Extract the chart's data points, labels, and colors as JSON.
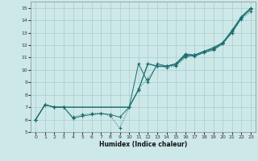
{
  "title": "",
  "xlabel": "Humidex (Indice chaleur)",
  "xlim": [
    -0.5,
    23.5
  ],
  "ylim": [
    5,
    15.5
  ],
  "xticks": [
    0,
    1,
    2,
    3,
    4,
    5,
    6,
    7,
    8,
    9,
    10,
    11,
    12,
    13,
    14,
    15,
    16,
    17,
    18,
    19,
    20,
    21,
    22,
    23
  ],
  "yticks": [
    5,
    6,
    7,
    8,
    9,
    10,
    11,
    12,
    13,
    14,
    15
  ],
  "background_color": "#cce8e8",
  "grid_color": "#aacccc",
  "line_color": "#1a6b6b",
  "series1_x": [
    0,
    1,
    2,
    3,
    10,
    11,
    12,
    13,
    14,
    15,
    16,
    17,
    18,
    19,
    20,
    21,
    22,
    23
  ],
  "series1_y": [
    6.0,
    7.2,
    7.0,
    7.0,
    7.0,
    8.4,
    10.5,
    10.3,
    10.3,
    10.5,
    11.2,
    11.1,
    11.4,
    11.6,
    12.1,
    13.1,
    14.2,
    14.9
  ],
  "series2_x": [
    0,
    1,
    2,
    3,
    4,
    5,
    6,
    7,
    8,
    9,
    10,
    11,
    12,
    13,
    14,
    15,
    16,
    17,
    18,
    19,
    20,
    21,
    22,
    23
  ],
  "series2_y": [
    6.0,
    7.2,
    7.0,
    7.0,
    6.1,
    6.3,
    6.4,
    6.5,
    6.4,
    6.2,
    7.0,
    10.5,
    9.0,
    10.5,
    10.3,
    10.4,
    11.1,
    11.2,
    11.5,
    11.7,
    12.2,
    13.0,
    14.2,
    14.9
  ],
  "series3_x": [
    0,
    1,
    2,
    3,
    4,
    5,
    6,
    7,
    8,
    9,
    10,
    11,
    12,
    13,
    14,
    15,
    16,
    17,
    18,
    19,
    20,
    21,
    22,
    23
  ],
  "series3_y": [
    6.0,
    7.2,
    7.0,
    7.0,
    6.2,
    6.4,
    6.5,
    6.5,
    6.3,
    5.3,
    7.0,
    8.5,
    9.3,
    10.3,
    10.2,
    10.3,
    11.0,
    11.2,
    11.4,
    11.7,
    12.1,
    13.0,
    14.1,
    14.7
  ],
  "series4_x": [
    0,
    1,
    2,
    3,
    10,
    11,
    12,
    13,
    14,
    15,
    16,
    17,
    18,
    19,
    20,
    21,
    22,
    23
  ],
  "series4_y": [
    6.0,
    7.2,
    7.0,
    7.0,
    7.0,
    8.4,
    10.5,
    10.3,
    10.3,
    10.5,
    11.3,
    11.2,
    11.5,
    11.8,
    12.2,
    13.2,
    14.3,
    15.0
  ]
}
